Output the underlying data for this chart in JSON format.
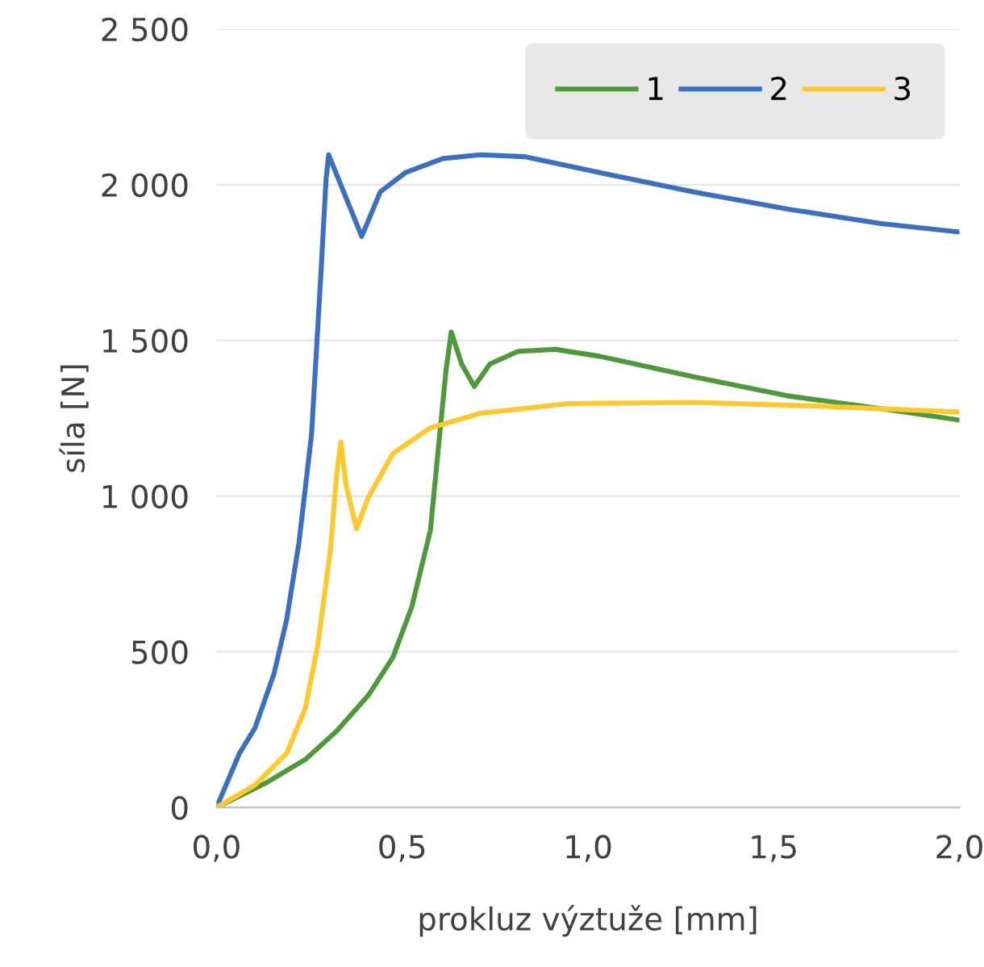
{
  "chart_data": {
    "type": "line",
    "xlabel": "prokluz výztuže [mm]",
    "ylabel": "síla [N]",
    "xlim": [
      0,
      2
    ],
    "ylim": [
      0,
      2500
    ],
    "xticks": [
      {
        "value": 0,
        "label": "0,0"
      },
      {
        "value": 0.5,
        "label": "0,5"
      },
      {
        "value": 1,
        "label": "1,0"
      },
      {
        "value": 1.5,
        "label": "1,5"
      },
      {
        "value": 2,
        "label": "2,0"
      }
    ],
    "yticks": [
      0,
      500,
      {
        "value": 1000,
        "label": "1 000"
      },
      {
        "value": 1500,
        "label": "1 500"
      },
      {
        "value": 2000,
        "label": "2 000"
      },
      {
        "value": 2500,
        "label": "2 500"
      }
    ],
    "grid": "y",
    "legend": "top right",
    "marker": "none",
    "line_style": "solid",
    "series": [
      {
        "name": "1",
        "color": "#4e9a3a",
        "x": [
          0,
          0.138,
          0.239,
          0.324,
          0.408,
          0.475,
          0.526,
          0.576,
          0.601,
          0.618,
          0.632,
          0.66,
          0.694,
          0.736,
          0.812,
          0.913,
          1.031,
          1.284,
          1.537,
          1.789,
          2.0
        ],
        "values": [
          0,
          82,
          154,
          246,
          359,
          482,
          645,
          891,
          1199,
          1404,
          1527,
          1424,
          1352,
          1424,
          1465,
          1471,
          1449,
          1383,
          1322,
          1281,
          1244
        ]
      },
      {
        "name": "2",
        "color": "#3b6fc0",
        "x": [
          0,
          0.062,
          0.104,
          0.155,
          0.189,
          0.222,
          0.256,
          0.281,
          0.295,
          0.302,
          0.391,
          0.441,
          0.509,
          0.61,
          0.711,
          0.829,
          1.031,
          1.284,
          1.537,
          1.789,
          2.0
        ],
        "values": [
          0,
          174,
          256,
          430,
          604,
          850,
          1199,
          1711,
          2018,
          2096,
          1834,
          1977,
          2039,
          2084,
          2096,
          2090,
          2039,
          1977,
          1922,
          1875,
          1848
        ]
      },
      {
        "name": "3",
        "color": "#ffc82c",
        "x": [
          0,
          0.104,
          0.189,
          0.239,
          0.273,
          0.307,
          0.324,
          0.335,
          0.349,
          0.377,
          0.408,
          0.475,
          0.576,
          0.711,
          0.947,
          1.284,
          1.621,
          2.0
        ],
        "values": [
          0,
          72,
          174,
          318,
          523,
          830,
          1076,
          1174,
          1035,
          895,
          994,
          1137,
          1219,
          1266,
          1297,
          1301,
          1289,
          1270
        ]
      }
    ]
  }
}
